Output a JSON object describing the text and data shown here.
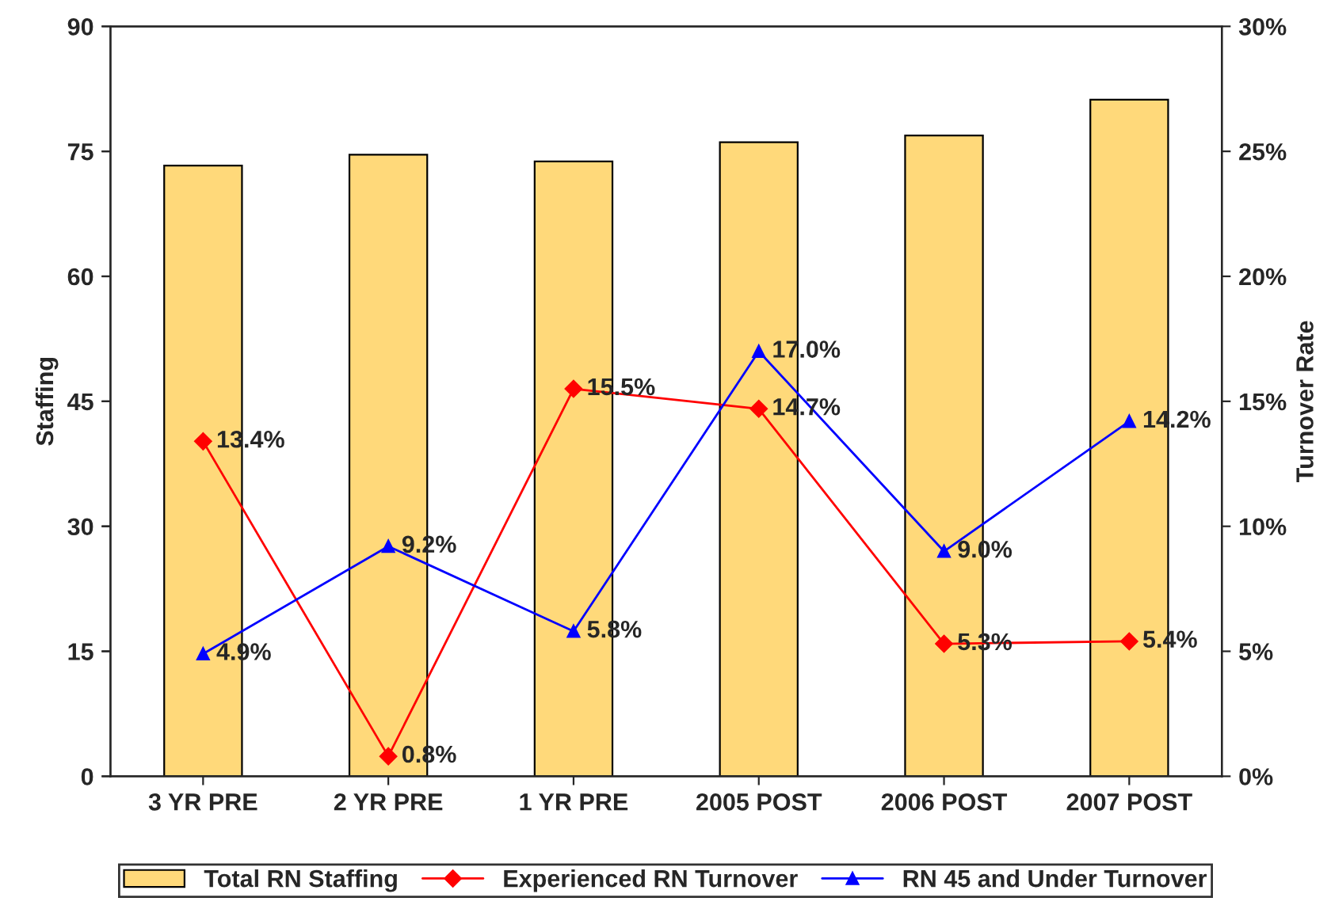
{
  "chart_data": {
    "type": "bar",
    "ylabel": "Staffing",
    "y2label": "Turnover Rate",
    "categories": [
      "3 YR PRE",
      "2 YR PRE",
      "1 YR PRE",
      "2005 POST",
      "2006 POST",
      "2007 POST"
    ],
    "series": [
      {
        "name": "Total RN Staffing",
        "color": "#ffd97a",
        "values": [
          73.3,
          74.6,
          73.8,
          76.1,
          76.9,
          81.2
        ]
      },
      {
        "name": "Experienced RN Turnover",
        "type": "line",
        "axis": "y2",
        "color": "#ff0000",
        "marker": "diamond",
        "values": [
          13.4,
          0.8,
          15.5,
          14.7,
          5.3,
          5.4
        ],
        "value_labels": [
          "13.4%",
          "0.8%",
          "15.5%",
          "14.7%",
          "5.3%",
          "5.4%"
        ]
      },
      {
        "name": "RN 45 and Under Turnover",
        "type": "line",
        "axis": "y2",
        "color": "#0000ff",
        "marker": "triangle",
        "values": [
          4.9,
          9.2,
          5.8,
          17.0,
          9.0,
          14.2
        ],
        "value_labels": [
          "4.9%",
          "9.2%",
          "5.8%",
          "17.0%",
          "9.0%",
          "14.2%"
        ]
      }
    ],
    "ylim": [
      0,
      90
    ],
    "yticks": [
      0,
      15,
      30,
      45,
      60,
      75,
      90
    ],
    "y2lim": [
      0,
      30
    ],
    "y2ticks": [
      {
        "value": 0,
        "label": "0%"
      },
      {
        "value": 5,
        "label": "5%"
      },
      {
        "value": 10,
        "label": "10%"
      },
      {
        "value": 15,
        "label": "15%"
      },
      {
        "value": 20,
        "label": "20%"
      },
      {
        "value": 25,
        "label": "25%"
      },
      {
        "value": 30,
        "label": "30%"
      }
    ],
    "grid": false,
    "legend": "bottom"
  }
}
